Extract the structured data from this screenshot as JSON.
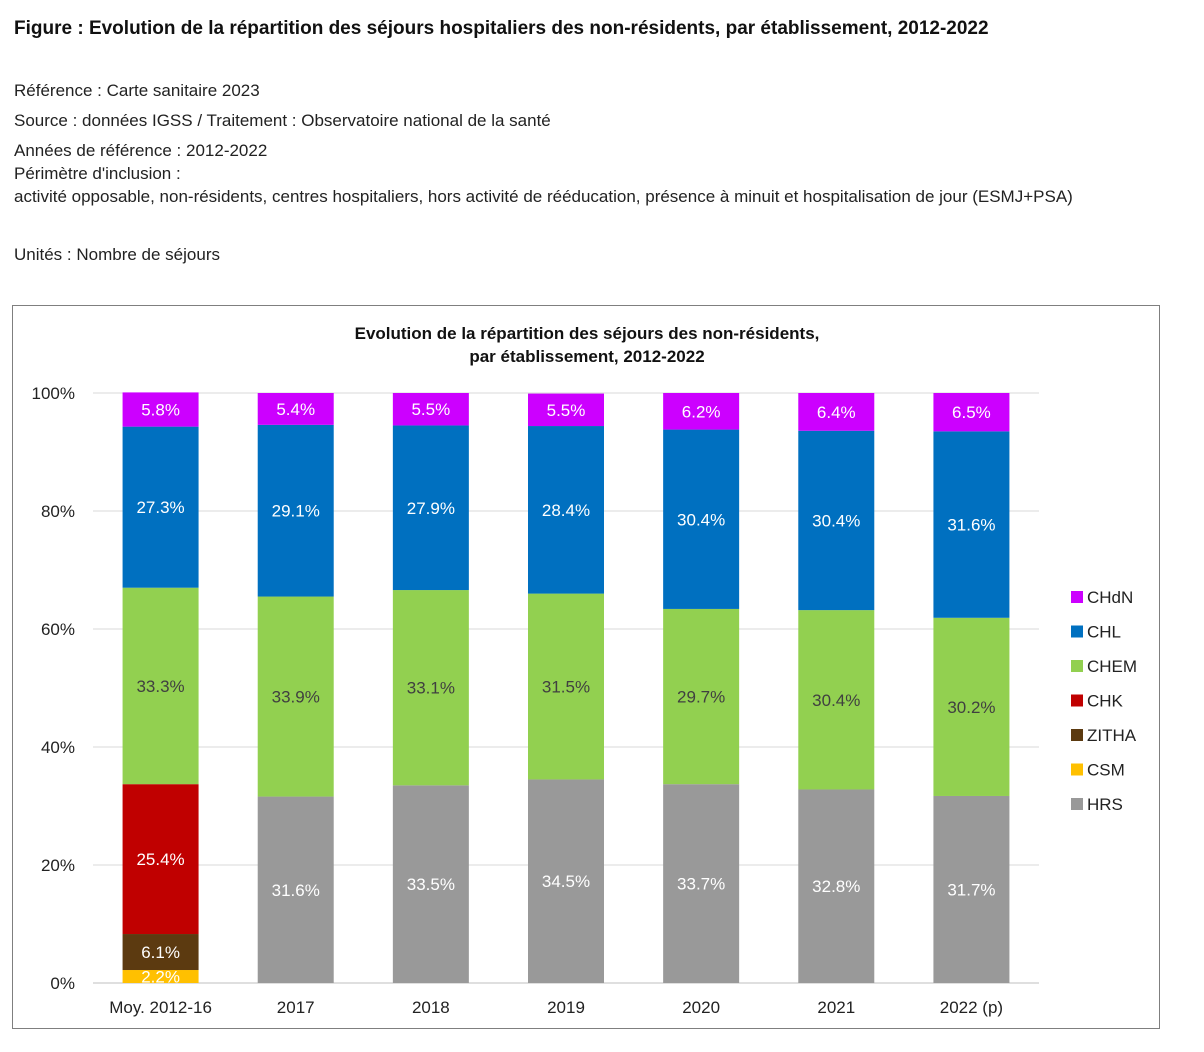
{
  "figure": {
    "title": "Figure : Evolution de la répartition des séjours hospitaliers des non-résidents, par établissement, 2012-2022",
    "reference": "Référence : Carte sanitaire 2023",
    "source": "Source : données IGSS / Traitement : Observatoire national de la santé",
    "years": "Années de référence : 2012-2022",
    "perimeter_label": "Périmètre d'inclusion :",
    "perimeter_text": "activité opposable, non-résidents, centres hospitaliers, hors activité de rééducation, présence à minuit et hospitalisation de jour (ESMJ+PSA)",
    "units": "Unités : Nombre de séjours"
  },
  "chart_data": {
    "type": "bar",
    "stacked": true,
    "title_lines": [
      "Evolution de la répartition des séjours des non-résidents,",
      "par établissement, 2012-2022"
    ],
    "categories": [
      "Moy. 2012-16",
      "2017",
      "2018",
      "2019",
      "2020",
      "2021",
      "2022 (p)"
    ],
    "y_ticks": [
      "0%",
      "20%",
      "40%",
      "60%",
      "80%",
      "100%"
    ],
    "ylim": [
      0,
      100
    ],
    "grid": true,
    "legend_position": "right",
    "series": [
      {
        "name": "HRS",
        "color": "#999999",
        "label_color": "#ffffff",
        "values": [
          0,
          31.6,
          33.5,
          34.5,
          33.7,
          32.8,
          31.7
        ],
        "labels": [
          "",
          "31.6%",
          "33.5%",
          "34.5%",
          "33.7%",
          "32.8%",
          "31.7%"
        ]
      },
      {
        "name": "CSM",
        "color": "#ffc000",
        "label_color": "#ffffff",
        "values": [
          2.2,
          0,
          0,
          0,
          0,
          0,
          0
        ],
        "labels": [
          "2.2%",
          "",
          "",
          "",
          "",
          "",
          ""
        ]
      },
      {
        "name": "ZITHA",
        "color": "#5c3a10",
        "label_color": "#ffffff",
        "values": [
          6.1,
          0,
          0,
          0,
          0,
          0,
          0
        ],
        "labels": [
          "6.1%",
          "",
          "",
          "",
          "",
          "",
          ""
        ]
      },
      {
        "name": "CHK",
        "color": "#c00000",
        "label_color": "#ffffff",
        "values": [
          25.4,
          0,
          0,
          0,
          0,
          0,
          0
        ],
        "labels": [
          "25.4%",
          "",
          "",
          "",
          "",
          "",
          ""
        ]
      },
      {
        "name": "CHEM",
        "color": "#92d050",
        "label_color": "#404040",
        "values": [
          33.3,
          33.9,
          33.1,
          31.5,
          29.7,
          30.4,
          30.2
        ],
        "labels": [
          "33.3%",
          "33.9%",
          "33.1%",
          "31.5%",
          "29.7%",
          "30.4%",
          "30.2%"
        ]
      },
      {
        "name": "CHL",
        "color": "#0070c0",
        "label_color": "#ffffff",
        "values": [
          27.3,
          29.1,
          27.9,
          28.4,
          30.4,
          30.4,
          31.6
        ],
        "labels": [
          "27.3%",
          "29.1%",
          "27.9%",
          "28.4%",
          "30.4%",
          "30.4%",
          "31.6%"
        ]
      },
      {
        "name": "CHdN",
        "color": "#cc00ff",
        "label_color": "#ffffff",
        "values": [
          5.8,
          5.4,
          5.5,
          5.5,
          6.2,
          6.4,
          6.5
        ],
        "labels": [
          "5.8%",
          "5.4%",
          "5.5%",
          "5.5%",
          "6.2%",
          "6.4%",
          "6.5%"
        ]
      }
    ],
    "legend_order": [
      "CHdN",
      "CHL",
      "CHEM",
      "CHK",
      "ZITHA",
      "CSM",
      "HRS"
    ]
  }
}
